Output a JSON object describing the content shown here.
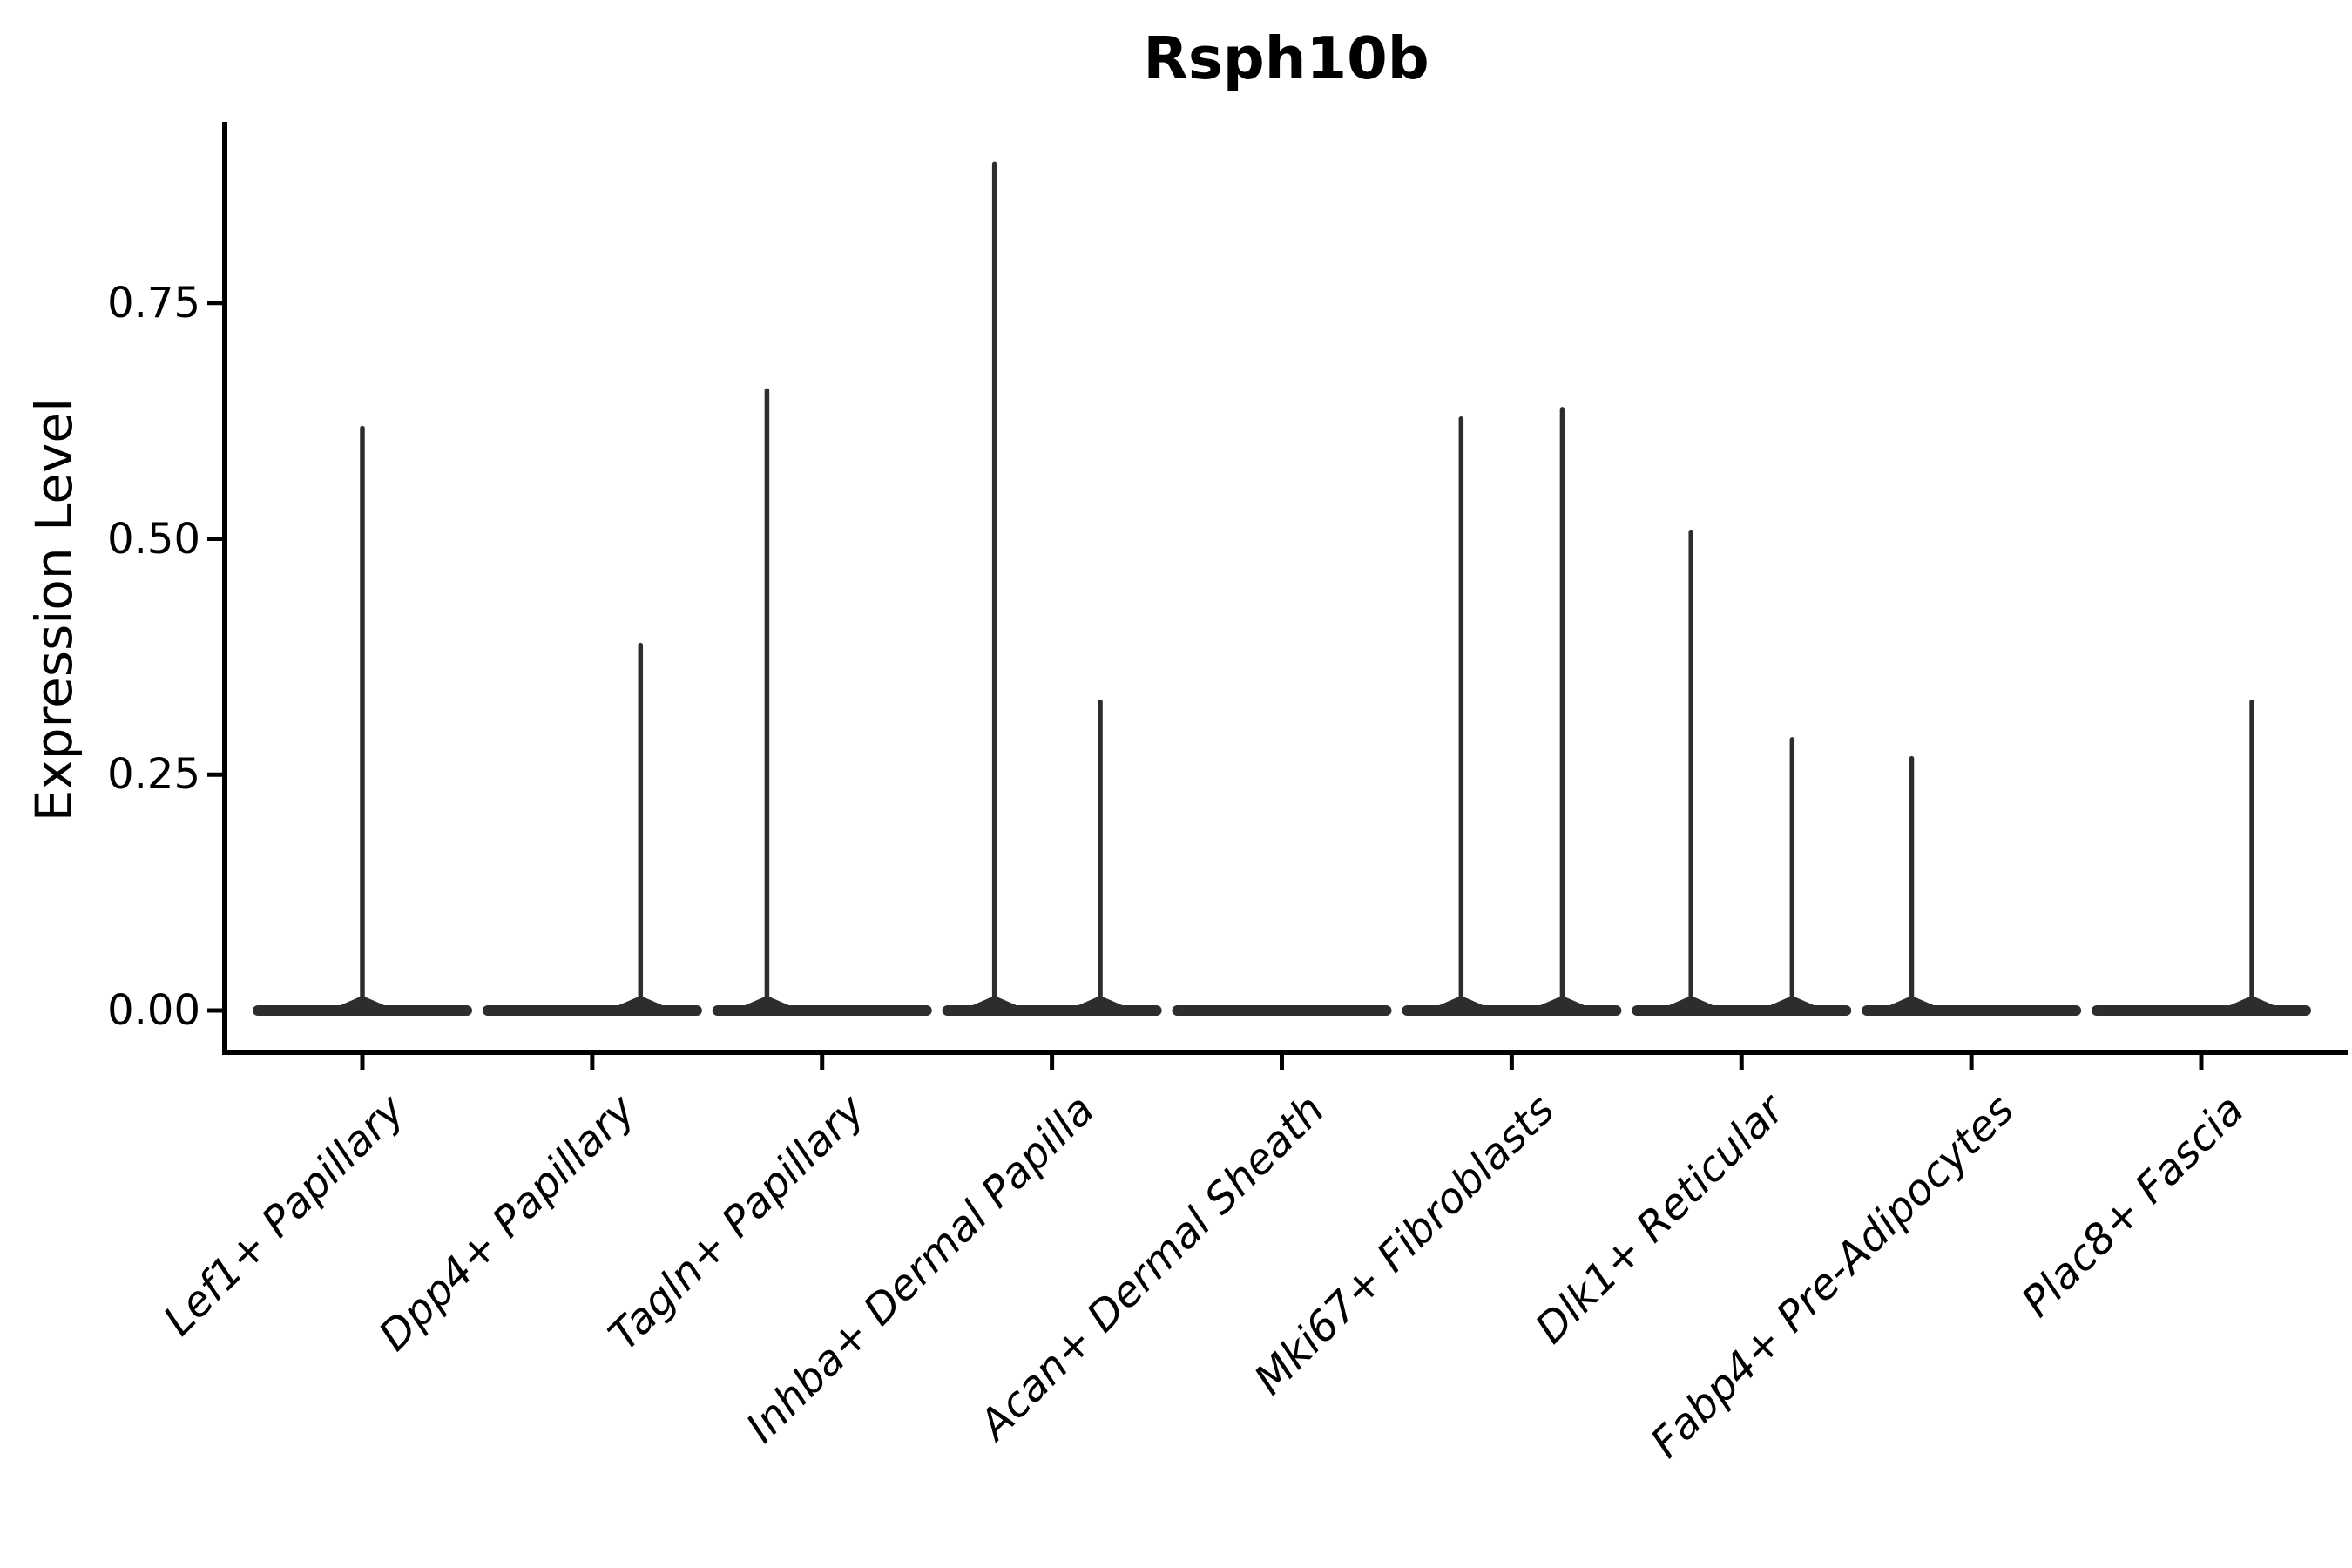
{
  "title": "Rsph10b",
  "chart_data": {
    "type": "violin",
    "title": "Rsph10b",
    "xlabel": "",
    "ylabel": "Expression Level",
    "categories": [
      "Lef1+ Papillary",
      "Dpp4+ Papillary",
      "Tagln+ Papillary",
      "Inhba+ Dermal Papilla",
      "Acan+ Dermal Sheath",
      "Mki67+ Fibroblasts",
      "Dlk1+ Reticular",
      "Fabp4+ Pre-Adipocytes",
      "Plac8+ Fascia"
    ],
    "yticks": [
      0.0,
      0.25,
      0.5,
      0.75
    ],
    "ytick_labels": [
      "0.00",
      "0.25",
      "0.50",
      "0.75"
    ],
    "ylim": [
      -0.04,
      0.94
    ],
    "grid": false,
    "legend": "none",
    "description": "Violin plot of Rsph10b expression per fibroblast subtype; each violin collapses to a flat line at 0 with narrow spikes up to the max expressing cells.",
    "violins": [
      {
        "category": "Lef1+ Papillary",
        "baseline_value": 0,
        "spikes": [
          {
            "offset_frac": 0.0,
            "max_value": 0.62
          }
        ]
      },
      {
        "category": "Dpp4+ Papillary",
        "baseline_value": 0,
        "spikes": [
          {
            "offset_frac": 0.21,
            "max_value": 0.39
          }
        ]
      },
      {
        "category": "Tagln+ Papillary",
        "baseline_value": 0,
        "spikes": [
          {
            "offset_frac": -0.24,
            "max_value": 0.66
          }
        ]
      },
      {
        "category": "Inhba+ Dermal Papilla",
        "baseline_value": 0,
        "spikes": [
          {
            "offset_frac": -0.25,
            "max_value": 0.9
          },
          {
            "offset_frac": 0.21,
            "max_value": 0.33
          }
        ]
      },
      {
        "category": "Acan+ Dermal Sheath",
        "baseline_value": 0,
        "spikes": []
      },
      {
        "category": "Mki67+ Fibroblasts",
        "baseline_value": 0,
        "spikes": [
          {
            "offset_frac": -0.22,
            "max_value": 0.63
          },
          {
            "offset_frac": 0.22,
            "max_value": 0.64
          }
        ]
      },
      {
        "category": "Dlk1+ Reticular",
        "baseline_value": 0,
        "spikes": [
          {
            "offset_frac": -0.22,
            "max_value": 0.51
          },
          {
            "offset_frac": 0.22,
            "max_value": 0.29
          }
        ]
      },
      {
        "category": "Fabp4+ Pre-Adipocytes",
        "baseline_value": 0,
        "spikes": [
          {
            "offset_frac": -0.26,
            "max_value": 0.27
          }
        ]
      },
      {
        "category": "Plac8+ Fascia",
        "baseline_value": 0,
        "spikes": [
          {
            "offset_frac": 0.22,
            "max_value": 0.33
          }
        ]
      }
    ],
    "colors": {
      "violin_line": "#2d2d2d",
      "axis": "#000000",
      "text": "#000000",
      "background": "#ffffff"
    }
  }
}
